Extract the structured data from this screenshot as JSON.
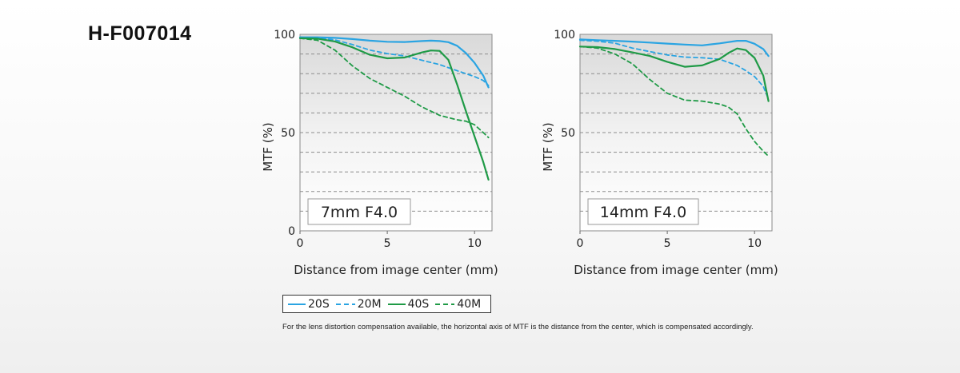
{
  "product_code": "H-F007014",
  "chart_data": [
    {
      "type": "line",
      "title": "7mm F4.0",
      "xlabel": "Distance from image center (mm)",
      "ylabel": "MTF (%)",
      "xlim": [
        0,
        11
      ],
      "ylim": [
        0,
        100
      ],
      "xticks": [
        "0",
        "5",
        "10"
      ],
      "yticks": [
        "0",
        "50",
        "100"
      ],
      "series": [
        {
          "name": "20S",
          "x": [
            0,
            1,
            2,
            3,
            4,
            5,
            6,
            7,
            7.5,
            8,
            8.5,
            9,
            9.5,
            10,
            10.5,
            10.8
          ],
          "y": [
            98.5,
            98.5,
            98.2,
            97.6,
            96.8,
            96.2,
            96.1,
            96.6,
            96.8,
            96.6,
            96.0,
            94.2,
            90.5,
            85.5,
            79.0,
            73.0
          ]
        },
        {
          "name": "20M",
          "x": [
            0,
            1,
            2,
            3,
            4,
            5,
            6,
            7,
            8,
            9,
            9.5,
            10,
            10.5,
            10.8
          ],
          "y": [
            98.5,
            98.2,
            97.2,
            94.8,
            92.0,
            90.2,
            89.0,
            86.8,
            84.6,
            81.5,
            80.0,
            78.5,
            76.5,
            74.0
          ]
        },
        {
          "name": "40S",
          "x": [
            0,
            1,
            2,
            3,
            4,
            5,
            6,
            7,
            7.5,
            8,
            8.5,
            9,
            9.5,
            10,
            10.5,
            10.8
          ],
          "y": [
            98.0,
            97.8,
            96.4,
            93.4,
            89.6,
            87.8,
            88.2,
            90.8,
            91.8,
            91.6,
            87.0,
            74.5,
            61.0,
            48.0,
            35.0,
            26.0
          ]
        },
        {
          "name": "40M",
          "x": [
            0,
            1,
            2,
            3,
            4,
            5,
            6,
            7,
            8,
            9,
            9.5,
            10,
            10.5,
            10.8
          ],
          "y": [
            98.0,
            97.0,
            92.0,
            84.0,
            77.5,
            73.0,
            68.5,
            63.0,
            58.8,
            56.5,
            55.8,
            54.0,
            50.0,
            47.5
          ]
        }
      ]
    },
    {
      "type": "line",
      "title": "14mm F4.0",
      "xlabel": "Distance from image center (mm)",
      "ylabel": "MTF (%)",
      "xlim": [
        0,
        11
      ],
      "ylim": [
        0,
        100
      ],
      "xticks": [
        "0",
        "5",
        "10"
      ],
      "yticks": [
        "50",
        "100"
      ],
      "series": [
        {
          "name": "20S",
          "x": [
            0,
            1,
            2,
            3,
            4,
            5,
            6,
            7,
            8,
            9,
            9.5,
            10,
            10.5,
            10.8
          ],
          "y": [
            97.4,
            97.0,
            96.7,
            96.3,
            95.8,
            95.3,
            94.8,
            94.4,
            95.4,
            96.7,
            96.7,
            95.2,
            92.5,
            89.0
          ]
        },
        {
          "name": "20M",
          "x": [
            0,
            1,
            2,
            3,
            4,
            5,
            6,
            7,
            8,
            9,
            9.5,
            10,
            10.5,
            10.8
          ],
          "y": [
            97.0,
            96.5,
            95.5,
            93.0,
            91.2,
            89.5,
            88.4,
            88.1,
            87.3,
            84.2,
            81.5,
            78.5,
            73.5,
            67.0
          ]
        },
        {
          "name": "40S",
          "x": [
            0,
            1,
            2,
            3,
            4,
            5,
            6,
            7,
            8,
            8.5,
            9,
            9.5,
            10,
            10.5,
            10.8
          ],
          "y": [
            93.8,
            93.5,
            92.5,
            90.8,
            89.0,
            86.0,
            83.5,
            84.2,
            87.5,
            90.5,
            92.8,
            92.0,
            88.0,
            79.0,
            66.0
          ]
        },
        {
          "name": "40M",
          "x": [
            0,
            1,
            2,
            3,
            4,
            5,
            6,
            7,
            8,
            8.5,
            9,
            9.5,
            10,
            10.5,
            10.8
          ],
          "y": [
            93.8,
            93.0,
            90.0,
            85.0,
            77.0,
            70.0,
            66.5,
            66.0,
            64.5,
            63.0,
            59.5,
            52.0,
            45.5,
            40.5,
            38.0
          ]
        }
      ]
    }
  ],
  "legend": [
    {
      "name": "20S",
      "label": "20S"
    },
    {
      "name": "20M",
      "label": "20M"
    },
    {
      "name": "40S",
      "label": "40S"
    },
    {
      "name": "40M",
      "label": "40M"
    }
  ],
  "series_styles": {
    "20S": {
      "color": "#2aa4e2",
      "dash": false
    },
    "20M": {
      "color": "#2aa4e2",
      "dash": true
    },
    "40S": {
      "color": "#1f9a46",
      "dash": false
    },
    "40M": {
      "color": "#1f9a46",
      "dash": true
    }
  },
  "footnote": "For the lens distortion compensation available, the horizontal axis of MTF is the distance from the center, which is compensated accordingly."
}
